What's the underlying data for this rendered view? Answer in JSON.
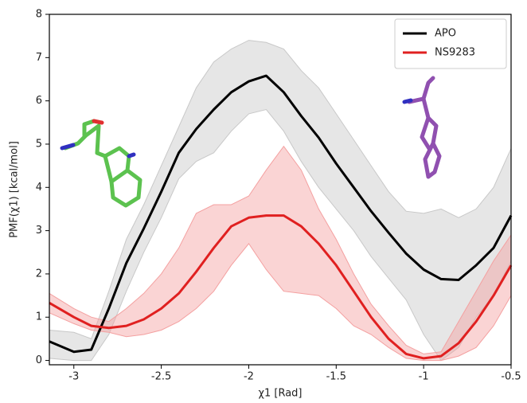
{
  "chart_data": {
    "type": "line",
    "xlabel": "χ1 [Rad]",
    "ylabel": "PMF(χ1) [kcal/mol]",
    "x": [
      -3.14,
      -3.0,
      -2.9,
      -2.8,
      -2.7,
      -2.6,
      -2.5,
      -2.4,
      -2.3,
      -2.2,
      -2.1,
      -2.0,
      -1.9,
      -1.8,
      -1.7,
      -1.6,
      -1.5,
      -1.4,
      -1.3,
      -1.2,
      -1.1,
      -1.0,
      -0.9,
      -0.8,
      -0.7,
      -0.6,
      -0.5
    ],
    "series": [
      {
        "name": "APO",
        "color": "#000000",
        "band_color": "#c8c8c8",
        "values": [
          0.44,
          0.2,
          0.25,
          1.2,
          2.25,
          3.05,
          3.9,
          4.8,
          5.35,
          5.8,
          6.2,
          6.45,
          6.58,
          6.2,
          5.65,
          5.15,
          4.55,
          4.0,
          3.45,
          2.95,
          2.47,
          2.1,
          1.88,
          1.86,
          2.2,
          2.6,
          3.35
        ],
        "band": {
          "upper": [
            0.7,
            0.65,
            0.5,
            1.6,
            2.8,
            3.6,
            4.5,
            5.4,
            6.3,
            6.9,
            7.2,
            7.4,
            7.35,
            7.2,
            6.7,
            6.3,
            5.7,
            5.1,
            4.5,
            3.9,
            3.45,
            3.4,
            3.5,
            3.3,
            3.5,
            4.0,
            4.9
          ],
          "lower": [
            0.05,
            0.0,
            0.0,
            0.6,
            1.6,
            2.5,
            3.3,
            4.2,
            4.6,
            4.8,
            5.3,
            5.7,
            5.8,
            5.3,
            4.6,
            4.0,
            3.5,
            3.0,
            2.4,
            1.9,
            1.4,
            0.6,
            0.0,
            0.3,
            1.0,
            1.5,
            2.3
          ]
        }
      },
      {
        "name": "NS9283",
        "color": "#e02020",
        "band_color": "#f4a0a0",
        "values": [
          1.33,
          1.0,
          0.8,
          0.75,
          0.8,
          0.95,
          1.2,
          1.55,
          2.05,
          2.6,
          3.1,
          3.3,
          3.35,
          3.35,
          3.1,
          2.7,
          2.2,
          1.6,
          1.0,
          0.5,
          0.15,
          0.05,
          0.1,
          0.4,
          0.9,
          1.5,
          2.2
        ],
        "band": {
          "upper": [
            1.55,
            1.2,
            1.0,
            0.9,
            1.2,
            1.55,
            2.0,
            2.6,
            3.4,
            3.6,
            3.6,
            3.8,
            4.4,
            4.95,
            4.4,
            3.5,
            2.8,
            2.0,
            1.3,
            0.8,
            0.35,
            0.15,
            0.2,
            0.9,
            1.6,
            2.3,
            2.9
          ],
          "lower": [
            1.1,
            0.85,
            0.7,
            0.65,
            0.55,
            0.6,
            0.7,
            0.9,
            1.2,
            1.6,
            2.2,
            2.7,
            2.1,
            1.6,
            1.55,
            1.5,
            1.2,
            0.8,
            0.6,
            0.3,
            0.05,
            0.0,
            0.0,
            0.1,
            0.3,
            0.8,
            1.5
          ]
        }
      }
    ],
    "xlim": [
      -3.14,
      -0.5
    ],
    "xticks": [
      -3.0,
      -2.5,
      -2.0,
      -1.5,
      -1.0,
      -0.5
    ],
    "ylim": [
      -0.1,
      8
    ],
    "yticks": [
      0,
      1,
      2,
      3,
      4,
      5,
      6,
      7,
      8
    ],
    "legend": "upper right"
  }
}
